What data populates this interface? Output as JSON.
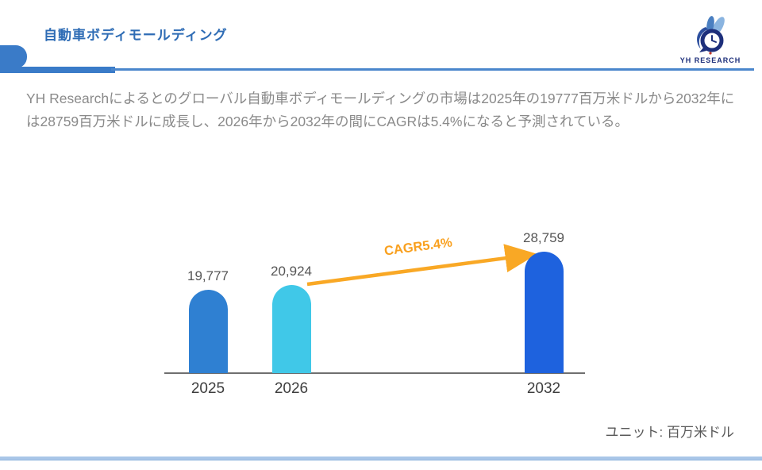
{
  "header": {
    "title": "自動車ボディモールディング",
    "logo_brand": "YH RESEARCH"
  },
  "description": "YH Researchによるとのグローバル自動車ボディモールディングの市場は2025年の19777百万米ドルから2032年には28759百万米ドルに成長し、2026年から2032年の間にCAGRは5.4%になると予測されている。",
  "chart_data": {
    "type": "bar",
    "title": "",
    "categories": [
      "2025",
      "2026",
      "2032"
    ],
    "values": [
      19777,
      20924,
      28759
    ],
    "value_labels": [
      "19,777",
      "20,924",
      "28,759"
    ],
    "bar_colors": [
      "#2F80D2",
      "#40C8E8",
      "#1E62DE"
    ],
    "ylim": [
      0,
      28759
    ],
    "grid": false,
    "annotation": {
      "text": "CAGR5.4%",
      "color": "#F9A825",
      "from_category": "2026",
      "to_category": "2032"
    },
    "unit_label": "ユニット: 百万米ドル"
  },
  "colors": {
    "accent_blue": "#3A7BC8",
    "title_blue": "#2E6CB5",
    "arrow_orange": "#F9A825",
    "footer_blue": "#A9C6E8"
  }
}
